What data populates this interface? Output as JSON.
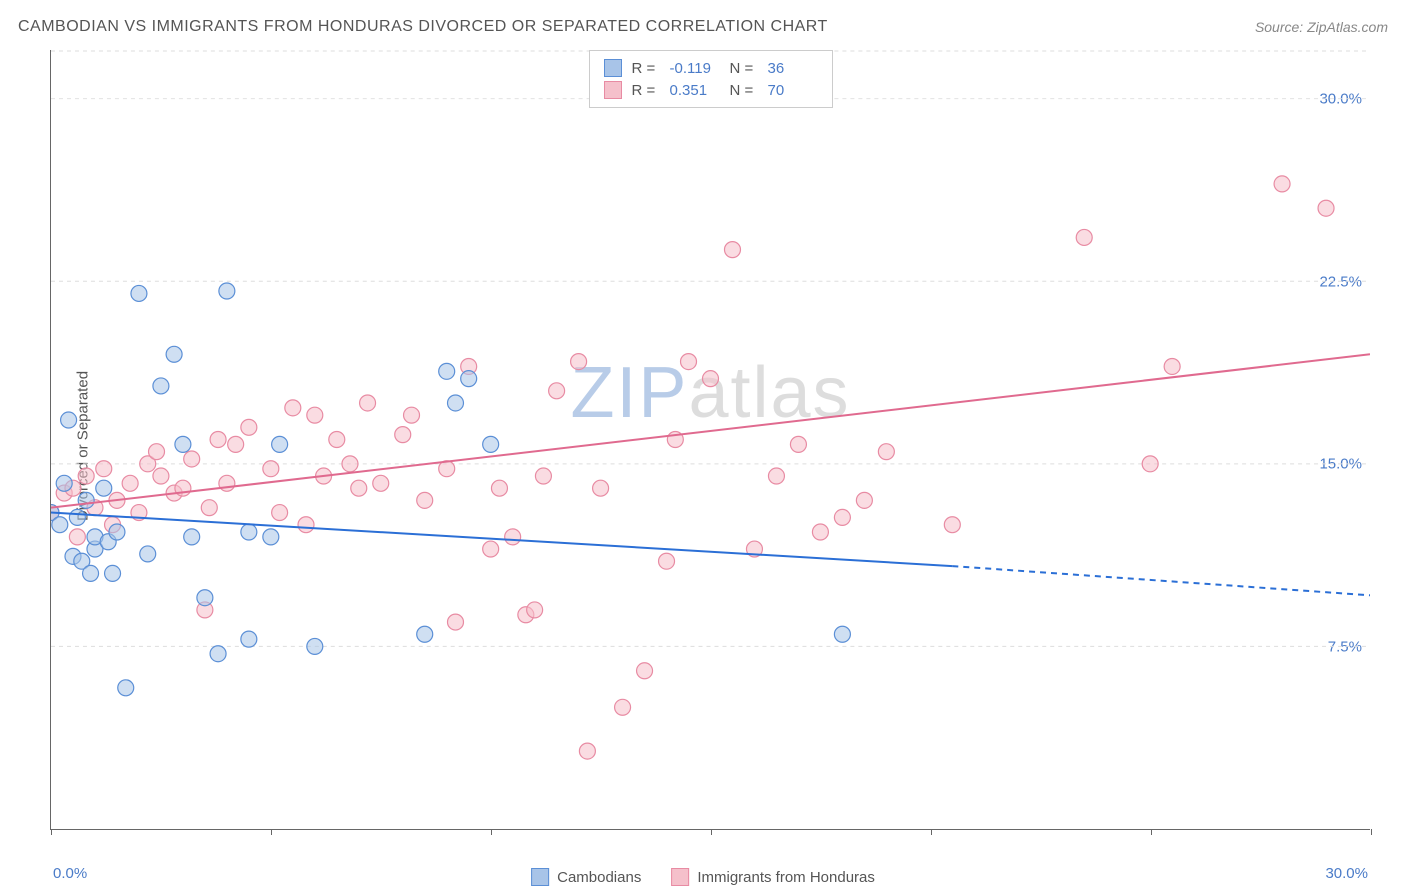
{
  "title": "CAMBODIAN VS IMMIGRANTS FROM HONDURAS DIVORCED OR SEPARATED CORRELATION CHART",
  "source_label": "Source: ",
  "source_name": "ZipAtlas.com",
  "y_axis_label": "Divorced or Separated",
  "watermark": {
    "part1": "ZIP",
    "part2": "atlas"
  },
  "chart": {
    "type": "scatter",
    "background_color": "#ffffff",
    "grid_color": "#dddddd",
    "axis_color": "#666666",
    "xlim": [
      0,
      30
    ],
    "ylim": [
      0,
      32
    ],
    "y_ticks": [
      7.5,
      15.0,
      22.5,
      30.0
    ],
    "y_tick_labels": [
      "7.5%",
      "15.0%",
      "22.5%",
      "30.0%"
    ],
    "x_tick_left": "0.0%",
    "x_tick_right": "30.0%",
    "x_minor_ticks": [
      0,
      5,
      10,
      15,
      20,
      25,
      30
    ],
    "tick_label_color": "#4a7bc8",
    "tick_fontsize": 15,
    "marker_radius": 8,
    "marker_opacity": 0.55,
    "series": [
      {
        "name": "Cambodians",
        "color_fill": "#a8c4e8",
        "color_stroke": "#5b8fd6",
        "R": "-0.119",
        "N": "36",
        "trend": {
          "x1": 0,
          "y1": 13.0,
          "x2": 20.5,
          "y2": 10.8,
          "ext_x2": 30,
          "ext_y2": 9.6,
          "color": "#2b6fd6",
          "width": 2
        },
        "points": [
          [
            0.0,
            13.0
          ],
          [
            0.2,
            12.5
          ],
          [
            0.3,
            14.2
          ],
          [
            0.4,
            16.8
          ],
          [
            0.5,
            11.2
          ],
          [
            0.6,
            12.8
          ],
          [
            0.7,
            11.0
          ],
          [
            0.8,
            13.5
          ],
          [
            1.0,
            11.5
          ],
          [
            1.0,
            12.0
          ],
          [
            1.2,
            14.0
          ],
          [
            1.3,
            11.8
          ],
          [
            1.4,
            10.5
          ],
          [
            1.5,
            12.2
          ],
          [
            1.7,
            5.8
          ],
          [
            2.0,
            22.0
          ],
          [
            2.2,
            11.3
          ],
          [
            2.5,
            18.2
          ],
          [
            2.8,
            19.5
          ],
          [
            3.0,
            15.8
          ],
          [
            3.2,
            12.0
          ],
          [
            3.5,
            9.5
          ],
          [
            3.8,
            7.2
          ],
          [
            4.0,
            22.1
          ],
          [
            4.5,
            7.8
          ],
          [
            5.0,
            12.0
          ],
          [
            5.2,
            15.8
          ],
          [
            6.0,
            7.5
          ],
          [
            8.5,
            8.0
          ],
          [
            9.0,
            18.8
          ],
          [
            9.2,
            17.5
          ],
          [
            9.5,
            18.5
          ],
          [
            10.0,
            15.8
          ],
          [
            4.5,
            12.2
          ],
          [
            18.0,
            8.0
          ],
          [
            0.9,
            10.5
          ]
        ]
      },
      {
        "name": "Immigrants from Honduras",
        "color_fill": "#f5c0cb",
        "color_stroke": "#e88ba3",
        "R": "0.351",
        "N": "70",
        "trend": {
          "x1": 0,
          "y1": 13.2,
          "x2": 30,
          "y2": 19.5,
          "color": "#e06a8f",
          "width": 2
        },
        "points": [
          [
            0.0,
            13.0
          ],
          [
            0.3,
            13.8
          ],
          [
            0.5,
            14.0
          ],
          [
            0.8,
            14.5
          ],
          [
            1.0,
            13.2
          ],
          [
            1.2,
            14.8
          ],
          [
            1.5,
            13.5
          ],
          [
            1.8,
            14.2
          ],
          [
            2.0,
            13.0
          ],
          [
            2.2,
            15.0
          ],
          [
            2.5,
            14.5
          ],
          [
            2.8,
            13.8
          ],
          [
            3.0,
            14.0
          ],
          [
            3.2,
            15.2
          ],
          [
            3.5,
            9.0
          ],
          [
            3.8,
            16.0
          ],
          [
            4.0,
            14.2
          ],
          [
            4.5,
            16.5
          ],
          [
            5.0,
            14.8
          ],
          [
            5.2,
            13.0
          ],
          [
            5.5,
            17.3
          ],
          [
            6.0,
            17.0
          ],
          [
            6.2,
            14.5
          ],
          [
            6.5,
            16.0
          ],
          [
            7.0,
            14.0
          ],
          [
            7.2,
            17.5
          ],
          [
            7.5,
            14.2
          ],
          [
            8.0,
            16.2
          ],
          [
            8.5,
            13.5
          ],
          [
            9.0,
            14.8
          ],
          [
            9.2,
            8.5
          ],
          [
            9.5,
            19.0
          ],
          [
            10.0,
            11.5
          ],
          [
            10.2,
            14.0
          ],
          [
            10.5,
            12.0
          ],
          [
            10.8,
            8.8
          ],
          [
            11.0,
            9.0
          ],
          [
            11.2,
            14.5
          ],
          [
            11.5,
            18.0
          ],
          [
            12.0,
            19.2
          ],
          [
            12.2,
            3.2
          ],
          [
            12.5,
            14.0
          ],
          [
            13.0,
            5.0
          ],
          [
            13.5,
            6.5
          ],
          [
            14.0,
            11.0
          ],
          [
            14.2,
            16.0
          ],
          [
            14.5,
            19.2
          ],
          [
            15.0,
            18.5
          ],
          [
            15.5,
            23.8
          ],
          [
            16.0,
            11.5
          ],
          [
            16.5,
            14.5
          ],
          [
            17.0,
            15.8
          ],
          [
            17.5,
            12.2
          ],
          [
            18.0,
            12.8
          ],
          [
            18.5,
            13.5
          ],
          [
            19.0,
            15.5
          ],
          [
            20.5,
            12.5
          ],
          [
            23.5,
            24.3
          ],
          [
            25.0,
            15.0
          ],
          [
            25.5,
            19.0
          ],
          [
            28.0,
            26.5
          ],
          [
            29.0,
            25.5
          ],
          [
            0.6,
            12.0
          ],
          [
            1.4,
            12.5
          ],
          [
            2.4,
            15.5
          ],
          [
            3.6,
            13.2
          ],
          [
            4.2,
            15.8
          ],
          [
            6.8,
            15.0
          ],
          [
            8.2,
            17.0
          ],
          [
            5.8,
            12.5
          ]
        ]
      }
    ]
  },
  "legend_top": {
    "r_label": "R =",
    "n_label": "N ="
  },
  "legend_bottom": {
    "items": [
      "Cambodians",
      "Immigrants from Honduras"
    ]
  }
}
